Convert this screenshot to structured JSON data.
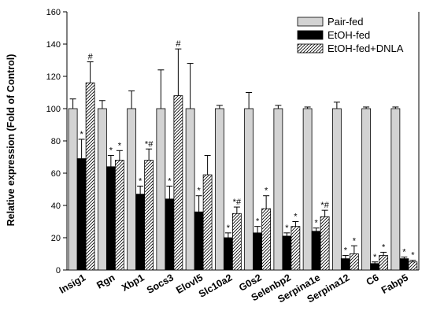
{
  "chart_data": {
    "type": "bar",
    "title": "",
    "xlabel": "",
    "ylabel": "Relative expression (Fold of Control)",
    "ylim": [
      0,
      160
    ],
    "yticks": [
      0,
      20,
      40,
      60,
      80,
      100,
      120,
      140,
      160
    ],
    "grid": false,
    "legend_position": "top-right",
    "categories": [
      "Insig1",
      "Rgn",
      "Xbp1",
      "Socs3",
      "Elovl5",
      "Slc10a2",
      "G0s2",
      "Selenbp2",
      "Serpina1e",
      "Serpina12",
      "C6",
      "Fabp5"
    ],
    "series": [
      {
        "name": "Pair-fed",
        "fill": "#d3d3d3",
        "pattern": "solid",
        "values": [
          100,
          100,
          100,
          100,
          100,
          100,
          100,
          100,
          100,
          100,
          100,
          100
        ],
        "errors": [
          6,
          5,
          11,
          24,
          28,
          2,
          10,
          2,
          1,
          4,
          1,
          1
        ],
        "marks": [
          "",
          "",
          "",
          "",
          "",
          "",
          "",
          "",
          "",
          "",
          "",
          ""
        ]
      },
      {
        "name": "EtOH-fed",
        "fill": "#000000",
        "pattern": "solid",
        "values": [
          69,
          64,
          47,
          44,
          36,
          20,
          23,
          21,
          24,
          7,
          4,
          7
        ],
        "errors": [
          12,
          7,
          5,
          8,
          10,
          3,
          4,
          2,
          2,
          2,
          1,
          1
        ],
        "marks": [
          "*",
          "*",
          "*",
          "*",
          "*",
          "*",
          "*",
          "*",
          "*",
          "*",
          "*",
          "*"
        ]
      },
      {
        "name": "EtOH-fed+DNLA",
        "fill": "#ffffff",
        "pattern": "hatch",
        "values": [
          116,
          68,
          68,
          108,
          59,
          35,
          38,
          27,
          33,
          10,
          9,
          5
        ],
        "errors": [
          13,
          6,
          7,
          29,
          12,
          4,
          8,
          3,
          4,
          5,
          2,
          1
        ],
        "marks": [
          "#",
          "*",
          "*#",
          "#",
          "",
          "*#",
          "*",
          "*",
          "*#",
          "*",
          "*",
          "*"
        ]
      }
    ]
  }
}
